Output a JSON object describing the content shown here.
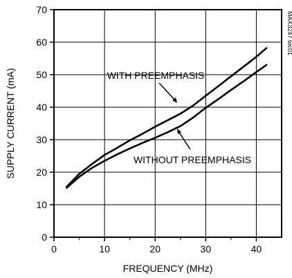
{
  "chart_data": {
    "type": "line",
    "xlabel": "FREQUENCY (MHz)",
    "ylabel": "SUPPLY CURRENT (mA)",
    "xlim": [
      0,
      45
    ],
    "ylim": [
      0,
      70
    ],
    "x_ticks": [
      0,
      10,
      20,
      30,
      40
    ],
    "y_ticks": [
      0,
      10,
      20,
      30,
      40,
      50,
      60,
      70
    ],
    "grid": true,
    "legend": "none",
    "figure_code": "MAX3247 toc01",
    "series": [
      {
        "name": "WITH PREEMPHASIS",
        "x": [
          2.5,
          5,
          7.5,
          10,
          12.5,
          15,
          17.5,
          20,
          22.5,
          25,
          27.5,
          30,
          32.5,
          35,
          37.5,
          40,
          42
        ],
        "y": [
          15.5,
          19.5,
          22.5,
          25.3,
          27.5,
          29.8,
          31.8,
          34,
          36,
          38,
          40.5,
          43.5,
          46.5,
          49.5,
          52.5,
          55.5,
          58.2
        ]
      },
      {
        "name": "WITHOUT PREEMPHASIS",
        "x": [
          2.5,
          5,
          7.5,
          10,
          12.5,
          15,
          17.5,
          20,
          22.5,
          25,
          27.5,
          30,
          32.5,
          35,
          37.5,
          40,
          42
        ],
        "y": [
          15.2,
          18.6,
          21.3,
          23.5,
          25.5,
          27.3,
          29,
          30.6,
          32.3,
          34.2,
          36.8,
          39.8,
          42.5,
          45.3,
          48,
          50.8,
          53
        ]
      }
    ],
    "annotations": [
      {
        "text": "WITH PREEMPHASIS",
        "target_series": 0
      },
      {
        "text": "WITHOUT PREEMPHASIS",
        "target_series": 1
      }
    ]
  }
}
